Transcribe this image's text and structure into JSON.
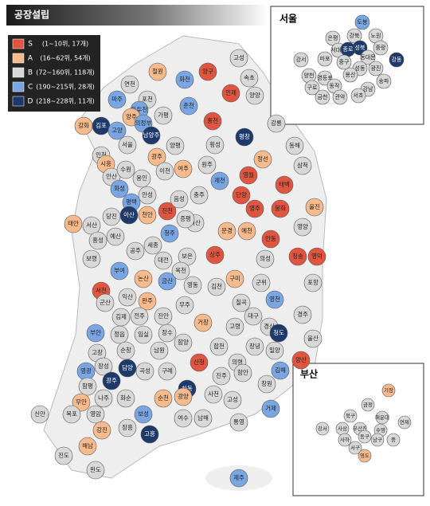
{
  "title": "공장설립",
  "legend": [
    {
      "grade": "S",
      "label": "(1~10위, 17개)",
      "color": "#e0553f"
    },
    {
      "grade": "A",
      "label": "(16~62위, 54개)",
      "color": "#f6ba8c"
    },
    {
      "grade": "B",
      "label": "(72~160위, 118개)",
      "color": "#d8d8d8"
    },
    {
      "grade": "C",
      "label": "(190~215위, 28개)",
      "color": "#79a6e2"
    },
    {
      "grade": "D",
      "label": "(218~228위, 11개)",
      "color": "#1d3a6b"
    }
  ],
  "regions": [
    {
      "name": "고성",
      "grade": "B"
    },
    {
      "name": "양구",
      "grade": "S"
    },
    {
      "name": "인제",
      "grade": "S"
    },
    {
      "name": "속초",
      "grade": "B"
    },
    {
      "name": "양양",
      "grade": "B"
    },
    {
      "name": "철원",
      "grade": "A"
    },
    {
      "name": "화천",
      "grade": "C"
    },
    {
      "name": "연천",
      "grade": "B"
    },
    {
      "name": "포천",
      "grade": "B"
    },
    {
      "name": "춘천",
      "grade": "C"
    },
    {
      "name": "홍천",
      "grade": "S"
    },
    {
      "name": "강릉",
      "grade": "B"
    },
    {
      "name": "파주",
      "grade": "C"
    },
    {
      "name": "동두천",
      "grade": "C"
    },
    {
      "name": "양주",
      "grade": "A"
    },
    {
      "name": "가평",
      "grade": "B"
    },
    {
      "name": "강화",
      "grade": "A"
    },
    {
      "name": "김포",
      "grade": "D"
    },
    {
      "name": "고양",
      "grade": "C"
    },
    {
      "name": "의정부",
      "grade": "C"
    },
    {
      "name": "남양주",
      "grade": "D"
    },
    {
      "name": "평창",
      "grade": "D"
    },
    {
      "name": "인천",
      "grade": "B"
    },
    {
      "name": "서울",
      "grade": "B"
    },
    {
      "name": "양평",
      "grade": "B"
    },
    {
      "name": "횡성",
      "grade": "B"
    },
    {
      "name": "동해",
      "grade": "B"
    },
    {
      "name": "정선",
      "grade": "A"
    },
    {
      "name": "삼척",
      "grade": "B"
    },
    {
      "name": "시흥",
      "grade": "A"
    },
    {
      "name": "안산",
      "grade": "B"
    },
    {
      "name": "수원",
      "grade": "B"
    },
    {
      "name": "광주",
      "grade": "A"
    },
    {
      "name": "이천",
      "grade": "B"
    },
    {
      "name": "여주",
      "grade": "A"
    },
    {
      "name": "원주",
      "grade": "B"
    },
    {
      "name": "화성",
      "grade": "C"
    },
    {
      "name": "용인",
      "grade": "B"
    },
    {
      "name": "안성",
      "grade": "B"
    },
    {
      "name": "평택",
      "grade": "C"
    },
    {
      "name": "제천",
      "grade": "C"
    },
    {
      "name": "영월",
      "grade": "S"
    },
    {
      "name": "태백",
      "grade": "S"
    },
    {
      "name": "단양",
      "grade": "S"
    },
    {
      "name": "당진",
      "grade": "B"
    },
    {
      "name": "태안",
      "grade": "A"
    },
    {
      "name": "서산",
      "grade": "B"
    },
    {
      "name": "아산",
      "grade": "D"
    },
    {
      "name": "천안",
      "grade": "A"
    },
    {
      "name": "진천",
      "grade": "S"
    },
    {
      "name": "음성",
      "grade": "B"
    },
    {
      "name": "충주",
      "grade": "B"
    },
    {
      "name": "괴산",
      "grade": "B"
    },
    {
      "name": "영주",
      "grade": "S"
    },
    {
      "name": "봉화",
      "grade": "S"
    },
    {
      "name": "울진",
      "grade": "A"
    },
    {
      "name": "홍성",
      "grade": "B"
    },
    {
      "name": "예산",
      "grade": "B"
    },
    {
      "name": "청주",
      "grade": "C"
    },
    {
      "name": "증평",
      "grade": "B"
    },
    {
      "name": "문경",
      "grade": "A"
    },
    {
      "name": "예천",
      "grade": "A"
    },
    {
      "name": "안동",
      "grade": "S"
    },
    {
      "name": "영양",
      "grade": "B"
    },
    {
      "name": "영덕",
      "grade": "S"
    },
    {
      "name": "보령",
      "grade": "B"
    },
    {
      "name": "공주",
      "grade": "B"
    },
    {
      "name": "세종",
      "grade": "B"
    },
    {
      "name": "대전",
      "grade": "B"
    },
    {
      "name": "보은",
      "grade": "B"
    },
    {
      "name": "상주",
      "grade": "S"
    },
    {
      "name": "의성",
      "grade": "B"
    },
    {
      "name": "청송",
      "grade": "S"
    },
    {
      "name": "부여",
      "grade": "C"
    },
    {
      "name": "서천",
      "grade": "S"
    },
    {
      "name": "논산",
      "grade": "A"
    },
    {
      "name": "금산",
      "grade": "C"
    },
    {
      "name": "옥천",
      "grade": "B"
    },
    {
      "name": "영동",
      "grade": "B"
    },
    {
      "name": "김천",
      "grade": "B"
    },
    {
      "name": "구미",
      "grade": "A"
    },
    {
      "name": "군위",
      "grade": "B"
    },
    {
      "name": "포항",
      "grade": "B"
    },
    {
      "name": "익산",
      "grade": "B"
    },
    {
      "name": "군산",
      "grade": "B"
    },
    {
      "name": "완주",
      "grade": "A"
    },
    {
      "name": "무주",
      "grade": "B"
    },
    {
      "name": "칠곡",
      "grade": "B"
    },
    {
      "name": "영천",
      "grade": "C"
    },
    {
      "name": "경주",
      "grade": "B"
    },
    {
      "name": "김제",
      "grade": "B"
    },
    {
      "name": "전주",
      "grade": "B"
    },
    {
      "name": "진안",
      "grade": "B"
    },
    {
      "name": "대구",
      "grade": "B"
    },
    {
      "name": "경산",
      "grade": "B"
    },
    {
      "name": "부안",
      "grade": "C"
    },
    {
      "name": "정읍",
      "grade": "B"
    },
    {
      "name": "임실",
      "grade": "B"
    },
    {
      "name": "장수",
      "grade": "B"
    },
    {
      "name": "거창",
      "grade": "A"
    },
    {
      "name": "고령",
      "grade": "B"
    },
    {
      "name": "청도",
      "grade": "D"
    },
    {
      "name": "울산",
      "grade": "B"
    },
    {
      "name": "고창",
      "grade": "B"
    },
    {
      "name": "순창",
      "grade": "B"
    },
    {
      "name": "남원",
      "grade": "B"
    },
    {
      "name": "함양",
      "grade": "B"
    },
    {
      "name": "합천",
      "grade": "B"
    },
    {
      "name": "창녕",
      "grade": "B"
    },
    {
      "name": "밀양",
      "grade": "B"
    },
    {
      "name": "양산",
      "grade": "S"
    },
    {
      "name": "영광",
      "grade": "C"
    },
    {
      "name": "장성",
      "grade": "B"
    },
    {
      "name": "담양",
      "grade": "D"
    },
    {
      "name": "곡성",
      "grade": "B"
    },
    {
      "name": "구례",
      "grade": "B"
    },
    {
      "name": "산청",
      "grade": "S"
    },
    {
      "name": "하동",
      "grade": "D"
    },
    {
      "name": "의령",
      "grade": "B"
    },
    {
      "name": "함안",
      "grade": "B"
    },
    {
      "name": "김해",
      "grade": "C"
    },
    {
      "name": "창원",
      "grade": "B"
    },
    {
      "name": "진주",
      "grade": "B"
    },
    {
      "name": "함평",
      "grade": "B"
    },
    {
      "name": "광주",
      "grade": "D"
    },
    {
      "name": "화순",
      "grade": "B"
    },
    {
      "name": "순천",
      "grade": "A"
    },
    {
      "name": "광양",
      "grade": "A"
    },
    {
      "name": "사천",
      "grade": "B"
    },
    {
      "name": "고성",
      "grade": "B"
    },
    {
      "name": "거제",
      "grade": "C"
    },
    {
      "name": "통영",
      "grade": "B"
    },
    {
      "name": "남해",
      "grade": "B"
    },
    {
      "name": "여수",
      "grade": "B"
    },
    {
      "name": "무안",
      "grade": "A"
    },
    {
      "name": "나주",
      "grade": "B"
    },
    {
      "name": "목포",
      "grade": "B"
    },
    {
      "name": "영암",
      "grade": "B"
    },
    {
      "name": "신안",
      "grade": "B"
    },
    {
      "name": "보성",
      "grade": "C"
    },
    {
      "name": "장흥",
      "grade": "B"
    },
    {
      "name": "강진",
      "grade": "A"
    },
    {
      "name": "해남",
      "grade": "A"
    },
    {
      "name": "진도",
      "grade": "B"
    },
    {
      "name": "완도",
      "grade": "B"
    },
    {
      "name": "고흥",
      "grade": "D"
    },
    {
      "name": "제주",
      "grade": "C"
    }
  ],
  "seoul": {
    "title": "서울",
    "districts": [
      {
        "name": "도봉",
        "grade": "C"
      },
      {
        "name": "강북",
        "grade": "B"
      },
      {
        "name": "노원",
        "grade": "B"
      },
      {
        "name": "은평",
        "grade": "B"
      },
      {
        "name": "성북",
        "grade": "D"
      },
      {
        "name": "중랑",
        "grade": "B"
      },
      {
        "name": "강서",
        "grade": "B"
      },
      {
        "name": "마포",
        "grade": "B"
      },
      {
        "name": "서대문",
        "grade": "B"
      },
      {
        "name": "종로",
        "grade": "D"
      },
      {
        "name": "동대문",
        "grade": "B"
      },
      {
        "name": "중구",
        "grade": "B"
      },
      {
        "name": "성동",
        "grade": "B"
      },
      {
        "name": "광진",
        "grade": "B"
      },
      {
        "name": "강동",
        "grade": "D"
      },
      {
        "name": "양천",
        "grade": "B"
      },
      {
        "name": "영등포",
        "grade": "B"
      },
      {
        "name": "용산",
        "grade": "B"
      },
      {
        "name": "송파",
        "grade": "B"
      },
      {
        "name": "구로",
        "grade": "B"
      },
      {
        "name": "동작",
        "grade": "B"
      },
      {
        "name": "강남",
        "grade": "B"
      },
      {
        "name": "금천",
        "grade": "B"
      },
      {
        "name": "관악",
        "grade": "B"
      },
      {
        "name": "서초",
        "grade": "B"
      }
    ]
  },
  "busan": {
    "title": "부산",
    "districts": [
      {
        "name": "기장",
        "grade": "A"
      },
      {
        "name": "금정",
        "grade": "B"
      },
      {
        "name": "북구",
        "grade": "B"
      },
      {
        "name": "해운대",
        "grade": "B"
      },
      {
        "name": "연제",
        "grade": "B"
      },
      {
        "name": "강서",
        "grade": "B"
      },
      {
        "name": "사상",
        "grade": "B"
      },
      {
        "name": "부산진",
        "grade": "B"
      },
      {
        "name": "수영",
        "grade": "B"
      },
      {
        "name": "사하",
        "grade": "B"
      },
      {
        "name": "동구",
        "grade": "B"
      },
      {
        "name": "남구",
        "grade": "B"
      },
      {
        "name": "중",
        "grade": "B"
      },
      {
        "name": "서구",
        "grade": "B"
      },
      {
        "name": "영도",
        "grade": "A"
      }
    ]
  }
}
